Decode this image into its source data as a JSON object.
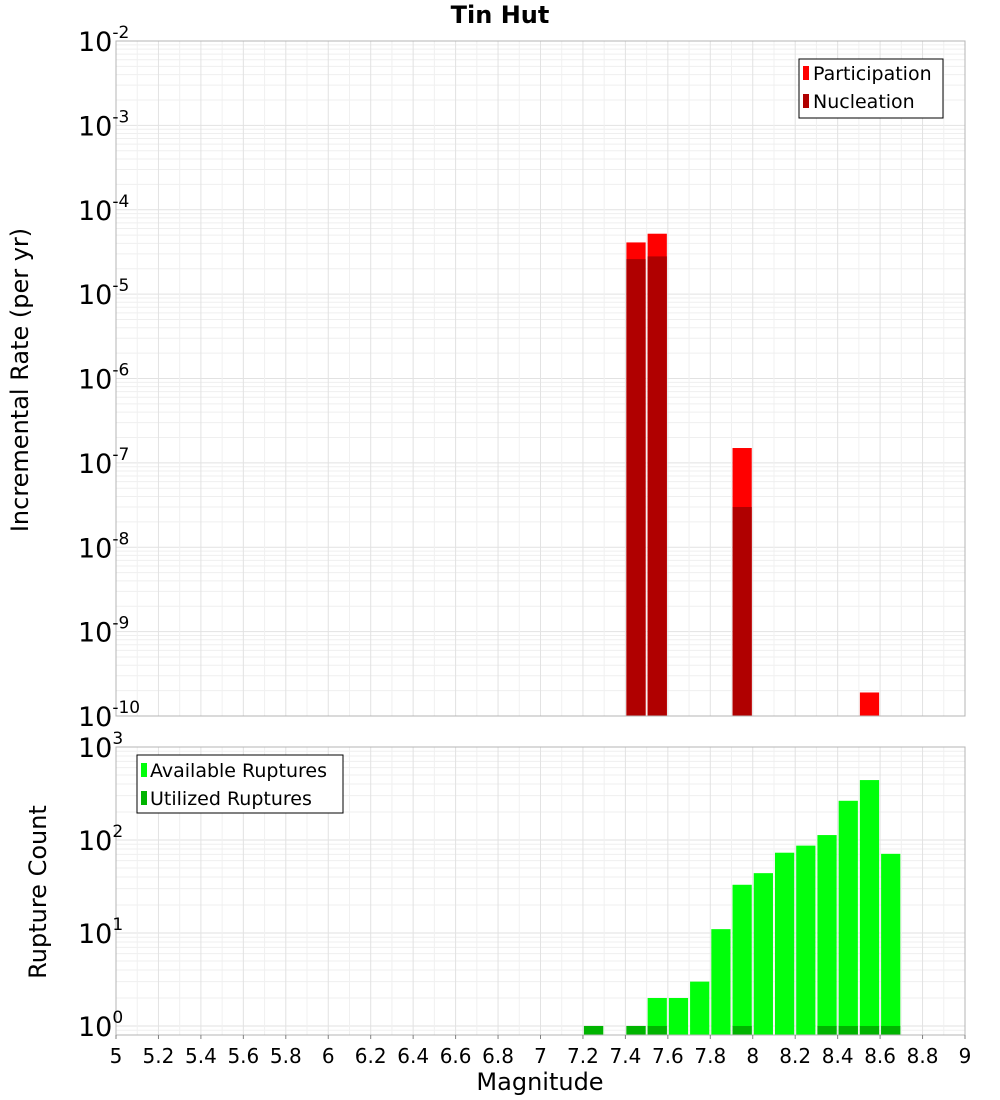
{
  "chart_data": [
    {
      "type": "bar",
      "title": "Tin Hut",
      "xlabel": "",
      "ylabel": "Incremental Rate (per yr)",
      "yscale": "log",
      "ylim": [
        1e-10,
        0.01
      ],
      "xlim": [
        5,
        9
      ],
      "grid": true,
      "legend_position": "top-right",
      "bin_width": 0.1,
      "series": [
        {
          "name": "Participation",
          "color": "#ff0000",
          "x": [
            7.45,
            7.55,
            7.95,
            8.55
          ],
          "values": [
            4.1e-05,
            5.2e-05,
            1.5e-07,
            1.9e-10
          ]
        },
        {
          "name": "Nucleation",
          "color": "#b00000",
          "x": [
            7.45,
            7.55,
            7.95
          ],
          "values": [
            2.6e-05,
            2.8e-05,
            3e-08
          ]
        }
      ],
      "yticks": [
        {
          "base": "10",
          "exp": "-2"
        },
        {
          "base": "10",
          "exp": "-3"
        },
        {
          "base": "10",
          "exp": "-4"
        },
        {
          "base": "10",
          "exp": "-5"
        },
        {
          "base": "10",
          "exp": "-6"
        },
        {
          "base": "10",
          "exp": "-7"
        },
        {
          "base": "10",
          "exp": "-8"
        },
        {
          "base": "10",
          "exp": "-9"
        },
        {
          "base": "10",
          "exp": "-10"
        }
      ]
    },
    {
      "type": "bar",
      "title": "",
      "xlabel": "Magnitude",
      "ylabel": "Rupture Count",
      "yscale": "log",
      "ylim": [
        0.8,
        1000
      ],
      "xlim": [
        5,
        9
      ],
      "grid": true,
      "legend_position": "top-left",
      "bin_width": 0.1,
      "series": [
        {
          "name": "Available Ruptures",
          "color": "#00ff0a",
          "x": [
            7.25,
            7.45,
            7.55,
            7.65,
            7.75,
            7.85,
            7.95,
            8.05,
            8.15,
            8.25,
            8.35,
            8.45,
            8.55,
            8.65
          ],
          "values": [
            1,
            1,
            2,
            2,
            3,
            11,
            33,
            44,
            73,
            87,
            113,
            264,
            441,
            71
          ]
        },
        {
          "name": "Utilized Ruptures",
          "color": "#00b400",
          "x": [
            7.25,
            7.45,
            7.55,
            7.95,
            8.35,
            8.45,
            8.55,
            8.65
          ],
          "values": [
            1,
            1,
            1,
            1,
            1,
            1,
            1,
            1
          ]
        }
      ],
      "yticks": [
        {
          "base": "10",
          "exp": "3"
        },
        {
          "base": "10",
          "exp": "2"
        },
        {
          "base": "10",
          "exp": "1"
        },
        {
          "base": "10",
          "exp": "0"
        }
      ],
      "xticks": [
        "5",
        "5.2",
        "5.4",
        "5.6",
        "5.8",
        "6",
        "6.2",
        "6.4",
        "6.6",
        "6.8",
        "7",
        "7.2",
        "7.4",
        "7.6",
        "7.8",
        "8",
        "8.2",
        "8.4",
        "8.6",
        "8.8",
        "9"
      ]
    }
  ]
}
